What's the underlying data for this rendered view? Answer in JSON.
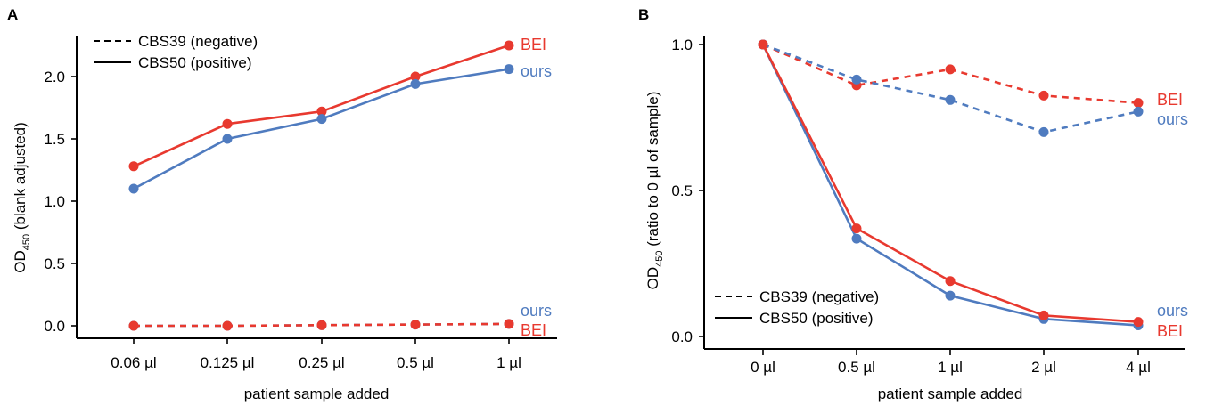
{
  "colors": {
    "bei": "#e8392f",
    "ours": "#4f7bbf"
  },
  "legend": {
    "negative_label": "CBS39 (negative)",
    "positive_label": "CBS50 (positive)"
  },
  "chart_data": [
    {
      "panel": "A",
      "type": "line",
      "categories": [
        "0.06 µl",
        "0.125 µl",
        "0.25 µl",
        "0.5 µl",
        "1 µl"
      ],
      "xlabel": "patient sample added",
      "ylabel_main": "OD",
      "ylabel_sub": "450",
      "ylabel_rest": " (blank adjusted)",
      "ylim": [
        0,
        2.3
      ],
      "yticks": [
        "0.0",
        "0.5",
        "1.0",
        "1.5",
        "2.0"
      ],
      "legend_position": "top-left",
      "series": [
        {
          "name": "BEI",
          "group": "positive",
          "style": "solid",
          "color": "#e8392f",
          "values": [
            1.28,
            1.62,
            1.72,
            2.0,
            2.25
          ]
        },
        {
          "name": "ours",
          "group": "positive",
          "style": "solid",
          "color": "#4f7bbf",
          "values": [
            1.1,
            1.5,
            1.66,
            1.94,
            2.06
          ]
        },
        {
          "name": "ours",
          "group": "negative",
          "style": "dashed",
          "color": "#4f7bbf",
          "values": [
            0.0,
            0.0,
            0.005,
            0.01,
            0.015
          ]
        },
        {
          "name": "BEI",
          "group": "negative",
          "style": "dashed",
          "color": "#e8392f",
          "values": [
            0.0,
            0.0,
            0.005,
            0.01,
            0.015
          ]
        }
      ]
    },
    {
      "panel": "B",
      "type": "line",
      "categories": [
        "0 µl",
        "0.5 µl",
        "1 µl",
        "2 µl",
        "4 µl"
      ],
      "xlabel": "patient sample added",
      "ylabel_main": "OD",
      "ylabel_sub": "450",
      "ylabel_rest": " (ratio to 0 µl of sample)",
      "ylim": [
        0,
        1.0
      ],
      "yticks": [
        "0.0",
        "0.5",
        "1.0"
      ],
      "legend_position": "bottom-left",
      "series": [
        {
          "name": "BEI",
          "group": "negative",
          "style": "dashed",
          "color": "#e8392f",
          "values": [
            1.0,
            0.86,
            0.915,
            0.825,
            0.8
          ]
        },
        {
          "name": "ours",
          "group": "negative",
          "style": "dashed",
          "color": "#4f7bbf",
          "values": [
            1.0,
            0.88,
            0.81,
            0.7,
            0.77
          ]
        },
        {
          "name": "ours",
          "group": "positive",
          "style": "solid",
          "color": "#4f7bbf",
          "values": [
            1.0,
            0.335,
            0.14,
            0.06,
            0.038
          ]
        },
        {
          "name": "BEI",
          "group": "positive",
          "style": "solid",
          "color": "#e8392f",
          "values": [
            1.0,
            0.37,
            0.19,
            0.072,
            0.05
          ]
        }
      ]
    }
  ]
}
